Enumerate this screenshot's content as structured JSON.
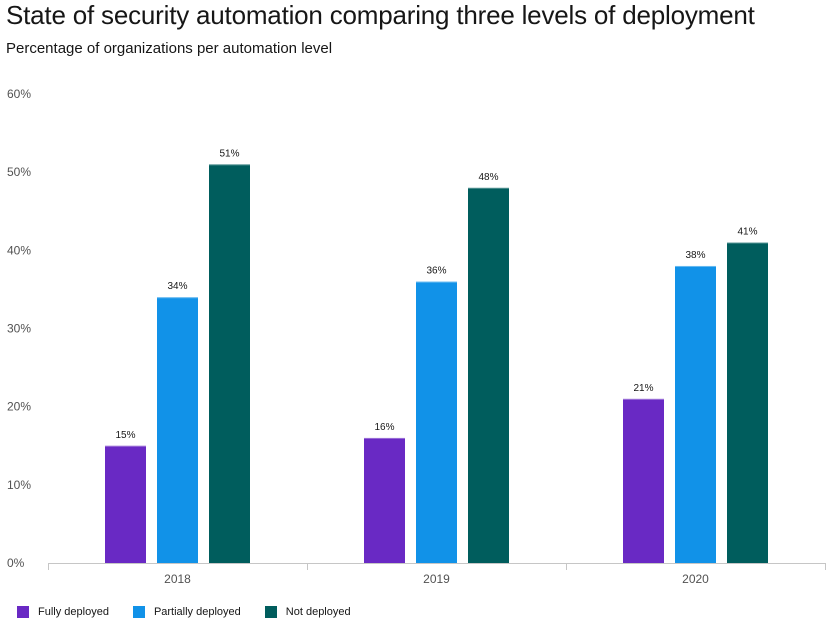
{
  "chart_data": {
    "type": "bar",
    "title": "State of security automation comparing three levels of deployment",
    "subtitle": "Percentage of organizations per automation level",
    "categories": [
      "2018",
      "2019",
      "2020"
    ],
    "series": [
      {
        "name": "Fully deployed",
        "color": "#6929c4",
        "values": [
          15,
          16,
          21
        ]
      },
      {
        "name": "Partially deployed",
        "color": "#1192e8",
        "values": [
          34,
          36,
          38
        ]
      },
      {
        "name": "Not deployed",
        "color": "#005d5d",
        "values": [
          51,
          48,
          41
        ]
      }
    ],
    "ylim": [
      0,
      60
    ],
    "yticks": [
      "0%",
      "10%",
      "20%",
      "30%",
      "40%",
      "50%",
      "60%"
    ],
    "value_suffix": "%",
    "grid": false,
    "legend_position": "bottom-left"
  }
}
